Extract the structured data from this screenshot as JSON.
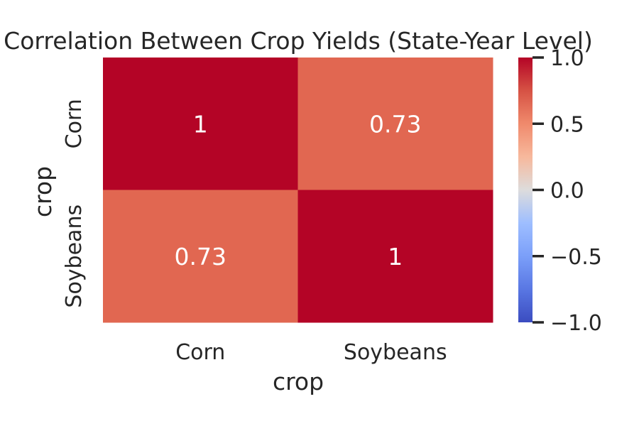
{
  "chart_data": {
    "type": "heatmap",
    "title": "Correlation Between Crop Yields (State-Year Level)",
    "xlabel": "crop",
    "ylabel": "crop",
    "x_categories": [
      "Corn",
      "Soybeans"
    ],
    "y_categories": [
      "Corn",
      "Soybeans"
    ],
    "values": [
      [
        1.0,
        0.73
      ],
      [
        0.73,
        1.0
      ]
    ],
    "annotations": [
      [
        "1",
        "0.73"
      ],
      [
        "0.73",
        "1"
      ]
    ],
    "colormap": "coolwarm",
    "vmin": -1.0,
    "vmax": 1.0,
    "colorbar_ticks": [
      1.0,
      0.5,
      0.0,
      -0.5,
      -1.0
    ],
    "colorbar_tick_labels": [
      "1.0",
      "0.5",
      "0.0",
      "−0.5",
      "−1.0"
    ],
    "colors": {
      "cell_high": "#b40426",
      "cell_mid_high": "#e16751",
      "text_dark": "#262626",
      "text_light": "#ffffff"
    }
  }
}
